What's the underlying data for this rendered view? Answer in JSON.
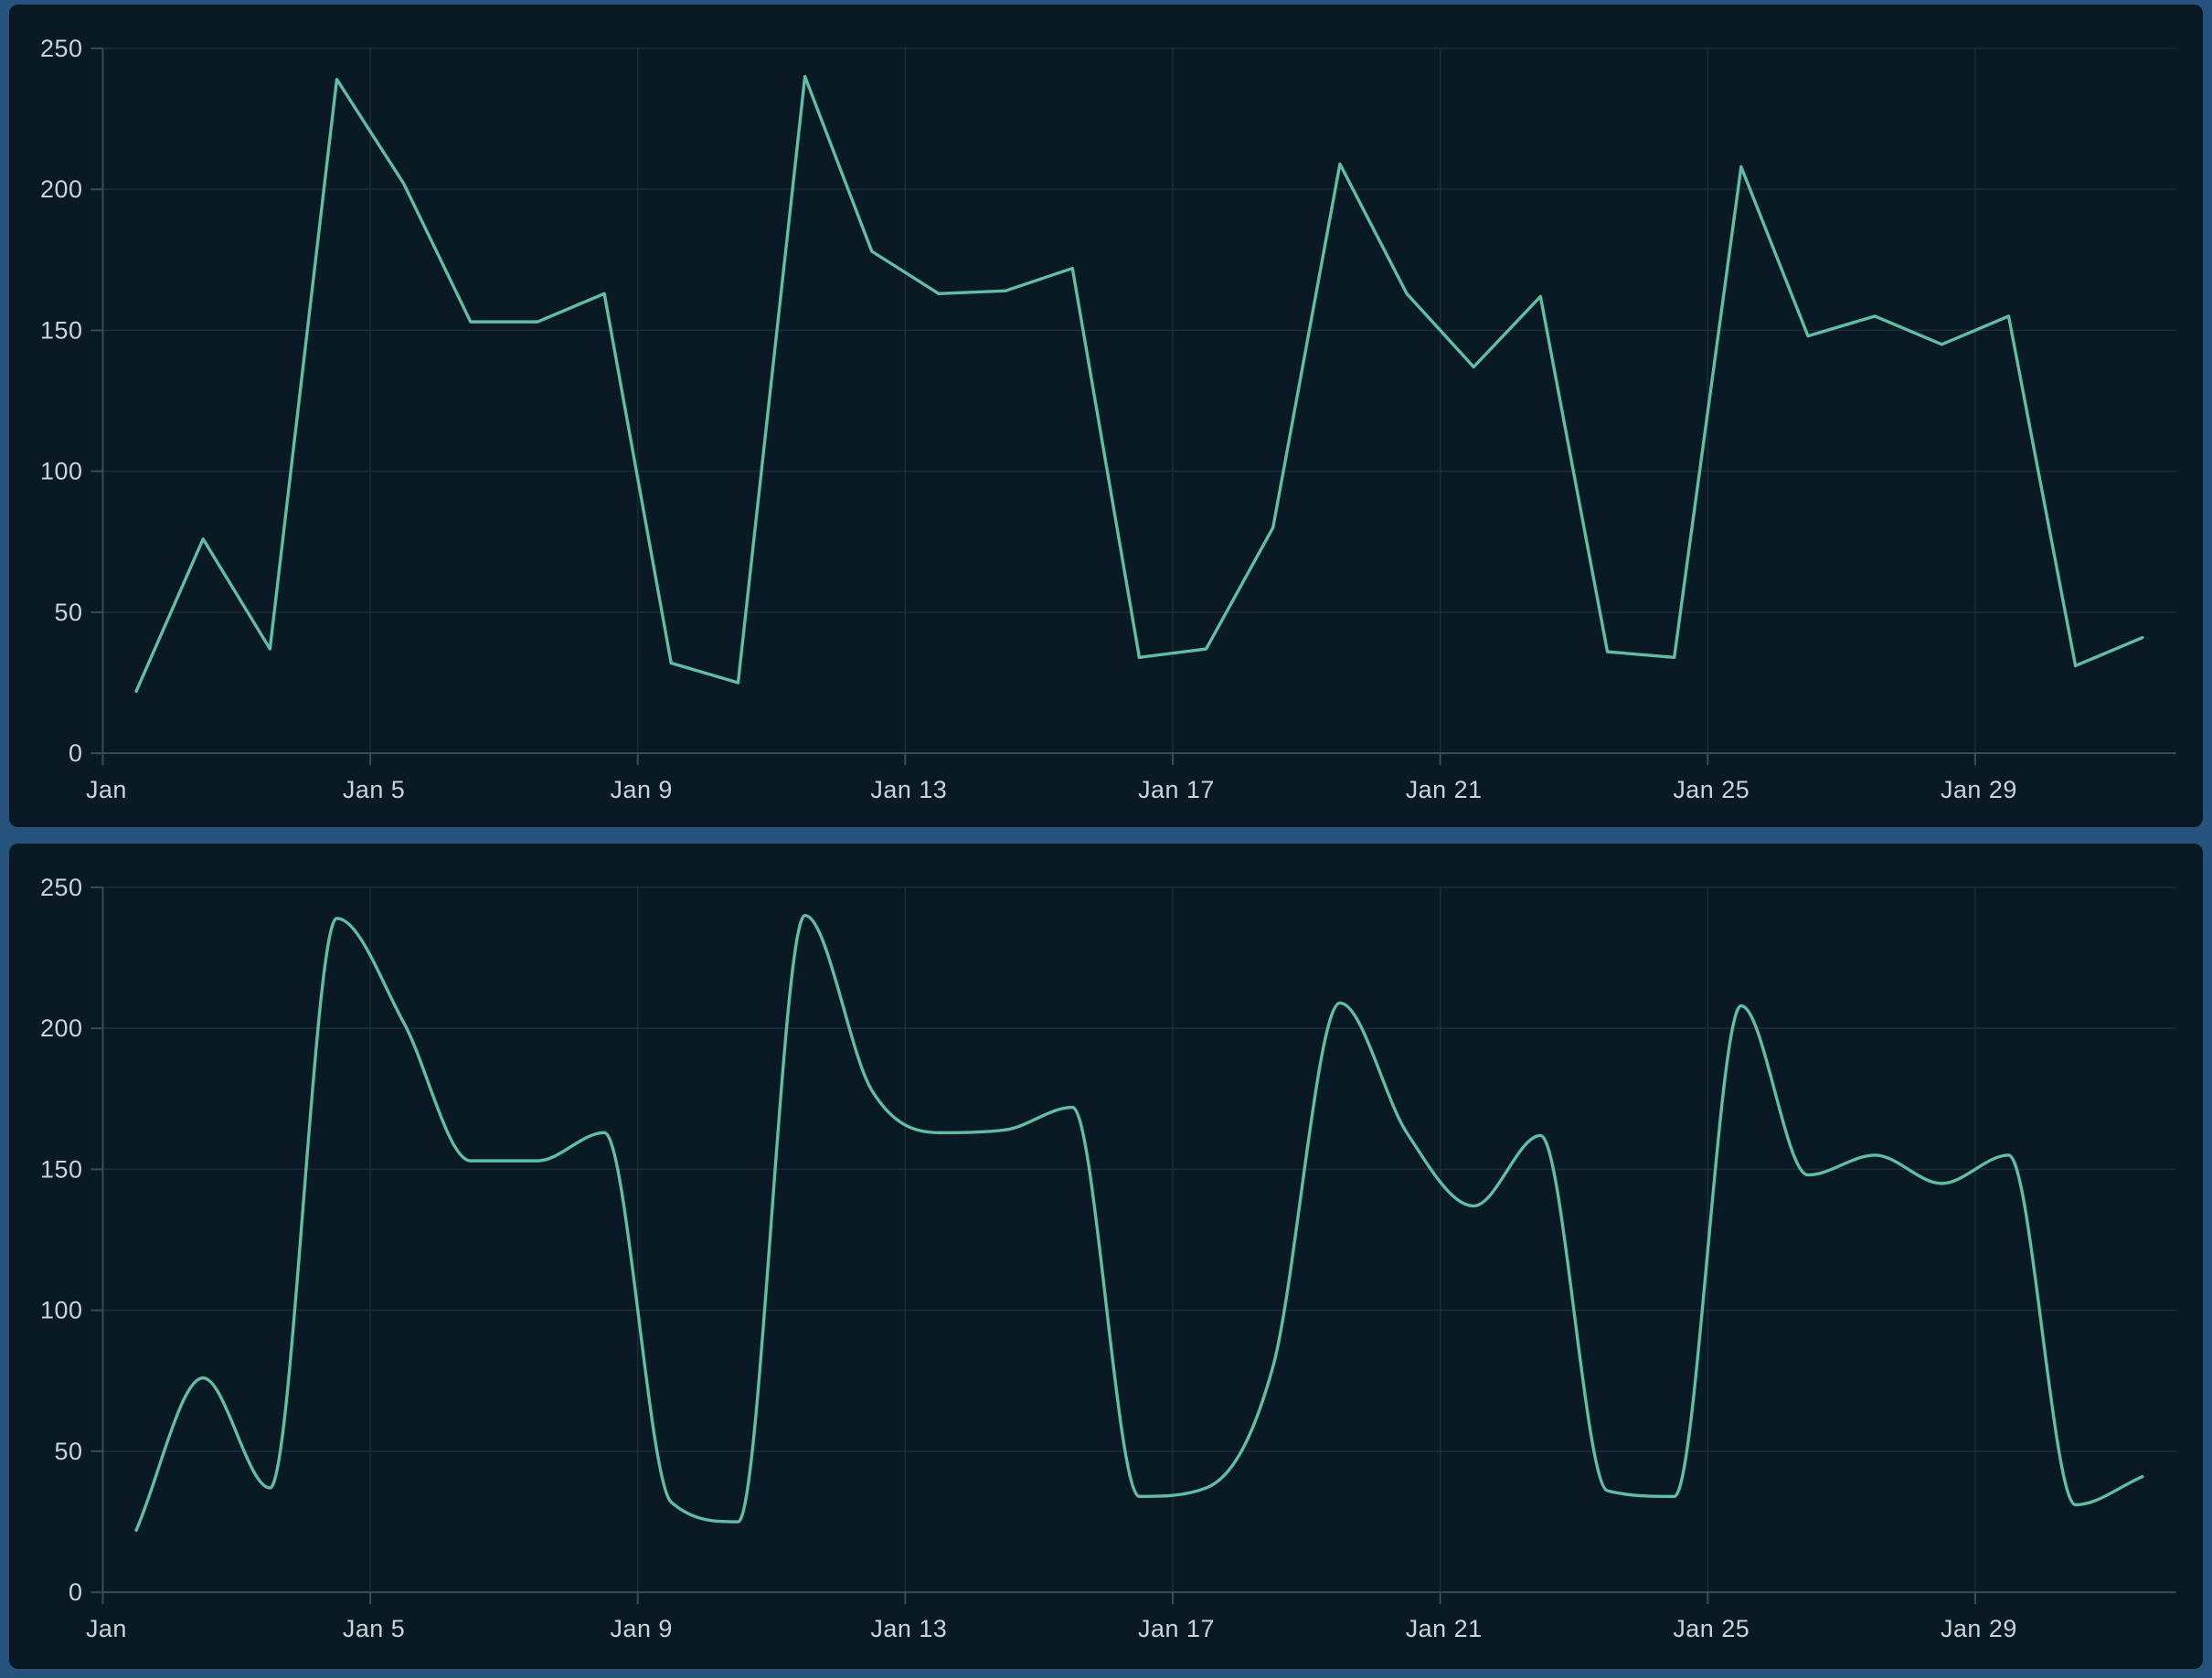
{
  "page": {
    "background_color": "#26527e",
    "panel_color": "#0a1a25",
    "gridline_color": "#1c2d37",
    "axis_color": "#3a4c59",
    "label_color": "#c8d3da",
    "accent_line_color": "#61bea4"
  },
  "chart_data": [
    {
      "type": "line",
      "title": "",
      "interpolation": "linear",
      "x_unit": "day of January",
      "x": [
        1,
        2,
        3,
        4,
        5,
        6,
        7,
        8,
        9,
        10,
        11,
        12,
        13,
        14,
        15,
        16,
        17,
        18,
        19,
        20,
        21,
        22,
        23,
        24,
        25,
        26,
        27,
        28,
        29,
        30,
        31
      ],
      "values": [
        22,
        76,
        37,
        239,
        202,
        153,
        153,
        163,
        32,
        25,
        240,
        178,
        163,
        164,
        172,
        34,
        37,
        80,
        209,
        163,
        137,
        162,
        36,
        34,
        208,
        148,
        155,
        145,
        155,
        31,
        41
      ],
      "x_tick_positions": [
        1,
        5,
        9,
        13,
        17,
        21,
        25,
        29
      ],
      "x_tick_labels": [
        "Jan",
        "Jan 5",
        "Jan 9",
        "Jan 13",
        "Jan 17",
        "Jan 21",
        "Jan 25",
        "Jan 29"
      ],
      "y_ticks": [
        0,
        50,
        100,
        150,
        200,
        250
      ],
      "y_tick_labels": [
        "0",
        "50",
        "100",
        "150",
        "200",
        "250"
      ],
      "ylim": [
        0,
        250
      ],
      "grid": true,
      "legend": false,
      "markers": false,
      "line_color": "#61bea4",
      "line_width": 3.4
    },
    {
      "type": "line",
      "title": "",
      "interpolation": "monotone-cubic-smooth",
      "x_unit": "day of January",
      "x": [
        1,
        2,
        3,
        4,
        5,
        6,
        7,
        8,
        9,
        10,
        11,
        12,
        13,
        14,
        15,
        16,
        17,
        18,
        19,
        20,
        21,
        22,
        23,
        24,
        25,
        26,
        27,
        28,
        29,
        30,
        31
      ],
      "values": [
        22,
        76,
        37,
        239,
        202,
        153,
        153,
        163,
        32,
        25,
        240,
        178,
        163,
        164,
        172,
        34,
        37,
        80,
        209,
        163,
        137,
        162,
        36,
        34,
        208,
        148,
        155,
        145,
        155,
        31,
        41
      ],
      "x_tick_positions": [
        1,
        5,
        9,
        13,
        17,
        21,
        25,
        29
      ],
      "x_tick_labels": [
        "Jan",
        "Jan 5",
        "Jan 9",
        "Jan 13",
        "Jan 17",
        "Jan 21",
        "Jan 25",
        "Jan 29"
      ],
      "y_ticks": [
        0,
        50,
        100,
        150,
        200,
        250
      ],
      "y_tick_labels": [
        "0",
        "50",
        "100",
        "150",
        "200",
        "250"
      ],
      "ylim": [
        0,
        250
      ],
      "grid": true,
      "legend": false,
      "markers": false,
      "line_color": "#61bea4",
      "line_width": 3.4
    }
  ]
}
